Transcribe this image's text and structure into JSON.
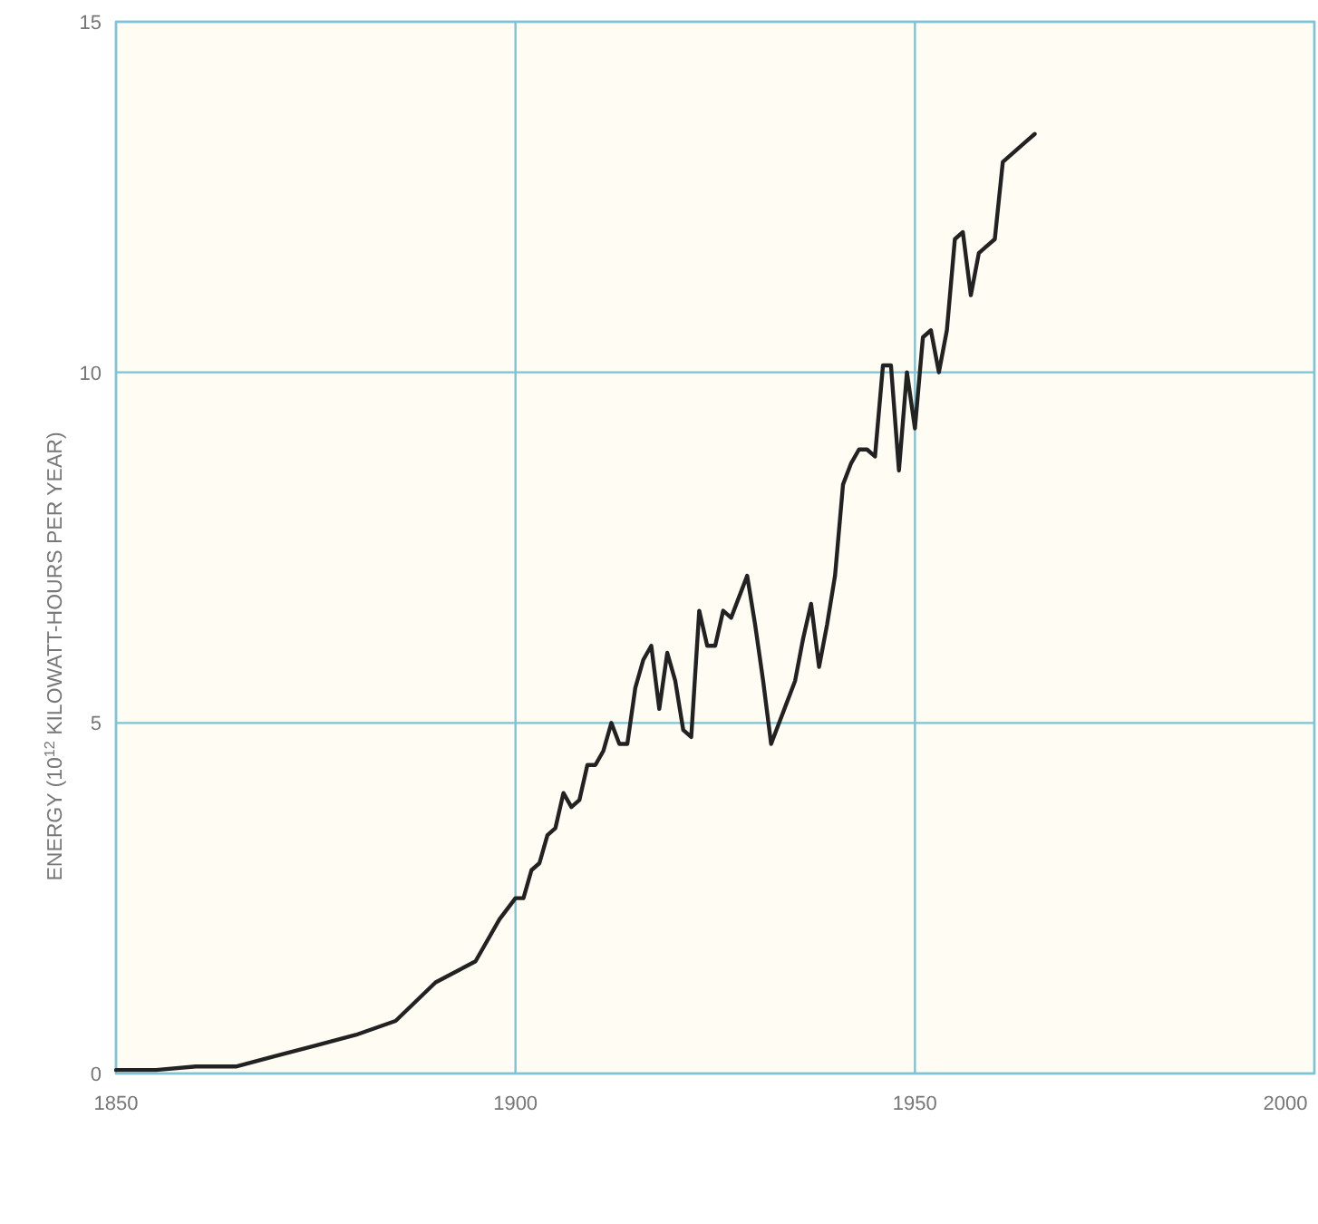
{
  "chart_data": {
    "type": "line",
    "ylabel": "ENERGY (10$^{12}$ KILOWATT-HOURS PER YEAR)",
    "x": [
      1850,
      1855,
      1860,
      1865,
      1870,
      1875,
      1880,
      1885,
      1890,
      1895,
      1898,
      1900,
      1901,
      1902,
      1903,
      1904,
      1905,
      1906,
      1907,
      1908,
      1909,
      1910,
      1911,
      1912,
      1913,
      1914,
      1915,
      1916,
      1917,
      1918,
      1919,
      1920,
      1921,
      1922,
      1923,
      1924,
      1925,
      1926,
      1927,
      1928,
      1929,
      1930,
      1931,
      1932,
      1933,
      1934,
      1935,
      1936,
      1937,
      1938,
      1939,
      1940,
      1941,
      1942,
      1943,
      1944,
      1945,
      1946,
      1947,
      1948,
      1949,
      1950,
      1951,
      1952,
      1953,
      1954,
      1955,
      1956,
      1957,
      1958,
      1959,
      1960,
      1961,
      1962,
      1963,
      1964,
      1965
    ],
    "series": [
      {
        "color": "#222222",
        "values": [
          0.05,
          0.05,
          0.1,
          0.1,
          0.25,
          0.4,
          0.55,
          0.75,
          1.3,
          1.6,
          2.2,
          2.5,
          2.5,
          2.9,
          3.0,
          3.4,
          3.5,
          4.0,
          3.8,
          3.9,
          4.4,
          4.4,
          4.6,
          5.0,
          4.7,
          4.7,
          5.5,
          5.9,
          6.1,
          5.2,
          6.0,
          5.6,
          4.9,
          4.8,
          6.6,
          6.1,
          6.1,
          6.6,
          6.5,
          6.8,
          7.1,
          6.4,
          5.6,
          4.7,
          5.0,
          5.3,
          5.6,
          6.2,
          6.7,
          5.8,
          6.4,
          7.1,
          8.4,
          8.7,
          8.9,
          8.9,
          8.8,
          10.1,
          10.1,
          8.6,
          10.0,
          9.2,
          10.5,
          10.6,
          10.0,
          10.6,
          11.9,
          12.0,
          11.1,
          11.7,
          11.8,
          11.9,
          13.0,
          13.1,
          13.2,
          13.3,
          13.4
        ]
      }
    ],
    "xlim": [
      1850,
      2000
    ],
    "xticks": [
      1850,
      1900,
      1950,
      2000
    ],
    "ylim": [
      0,
      15
    ],
    "yticks": [
      0,
      5,
      10,
      15
    ],
    "grid": true,
    "marker": "none",
    "line_style": "solid"
  }
}
